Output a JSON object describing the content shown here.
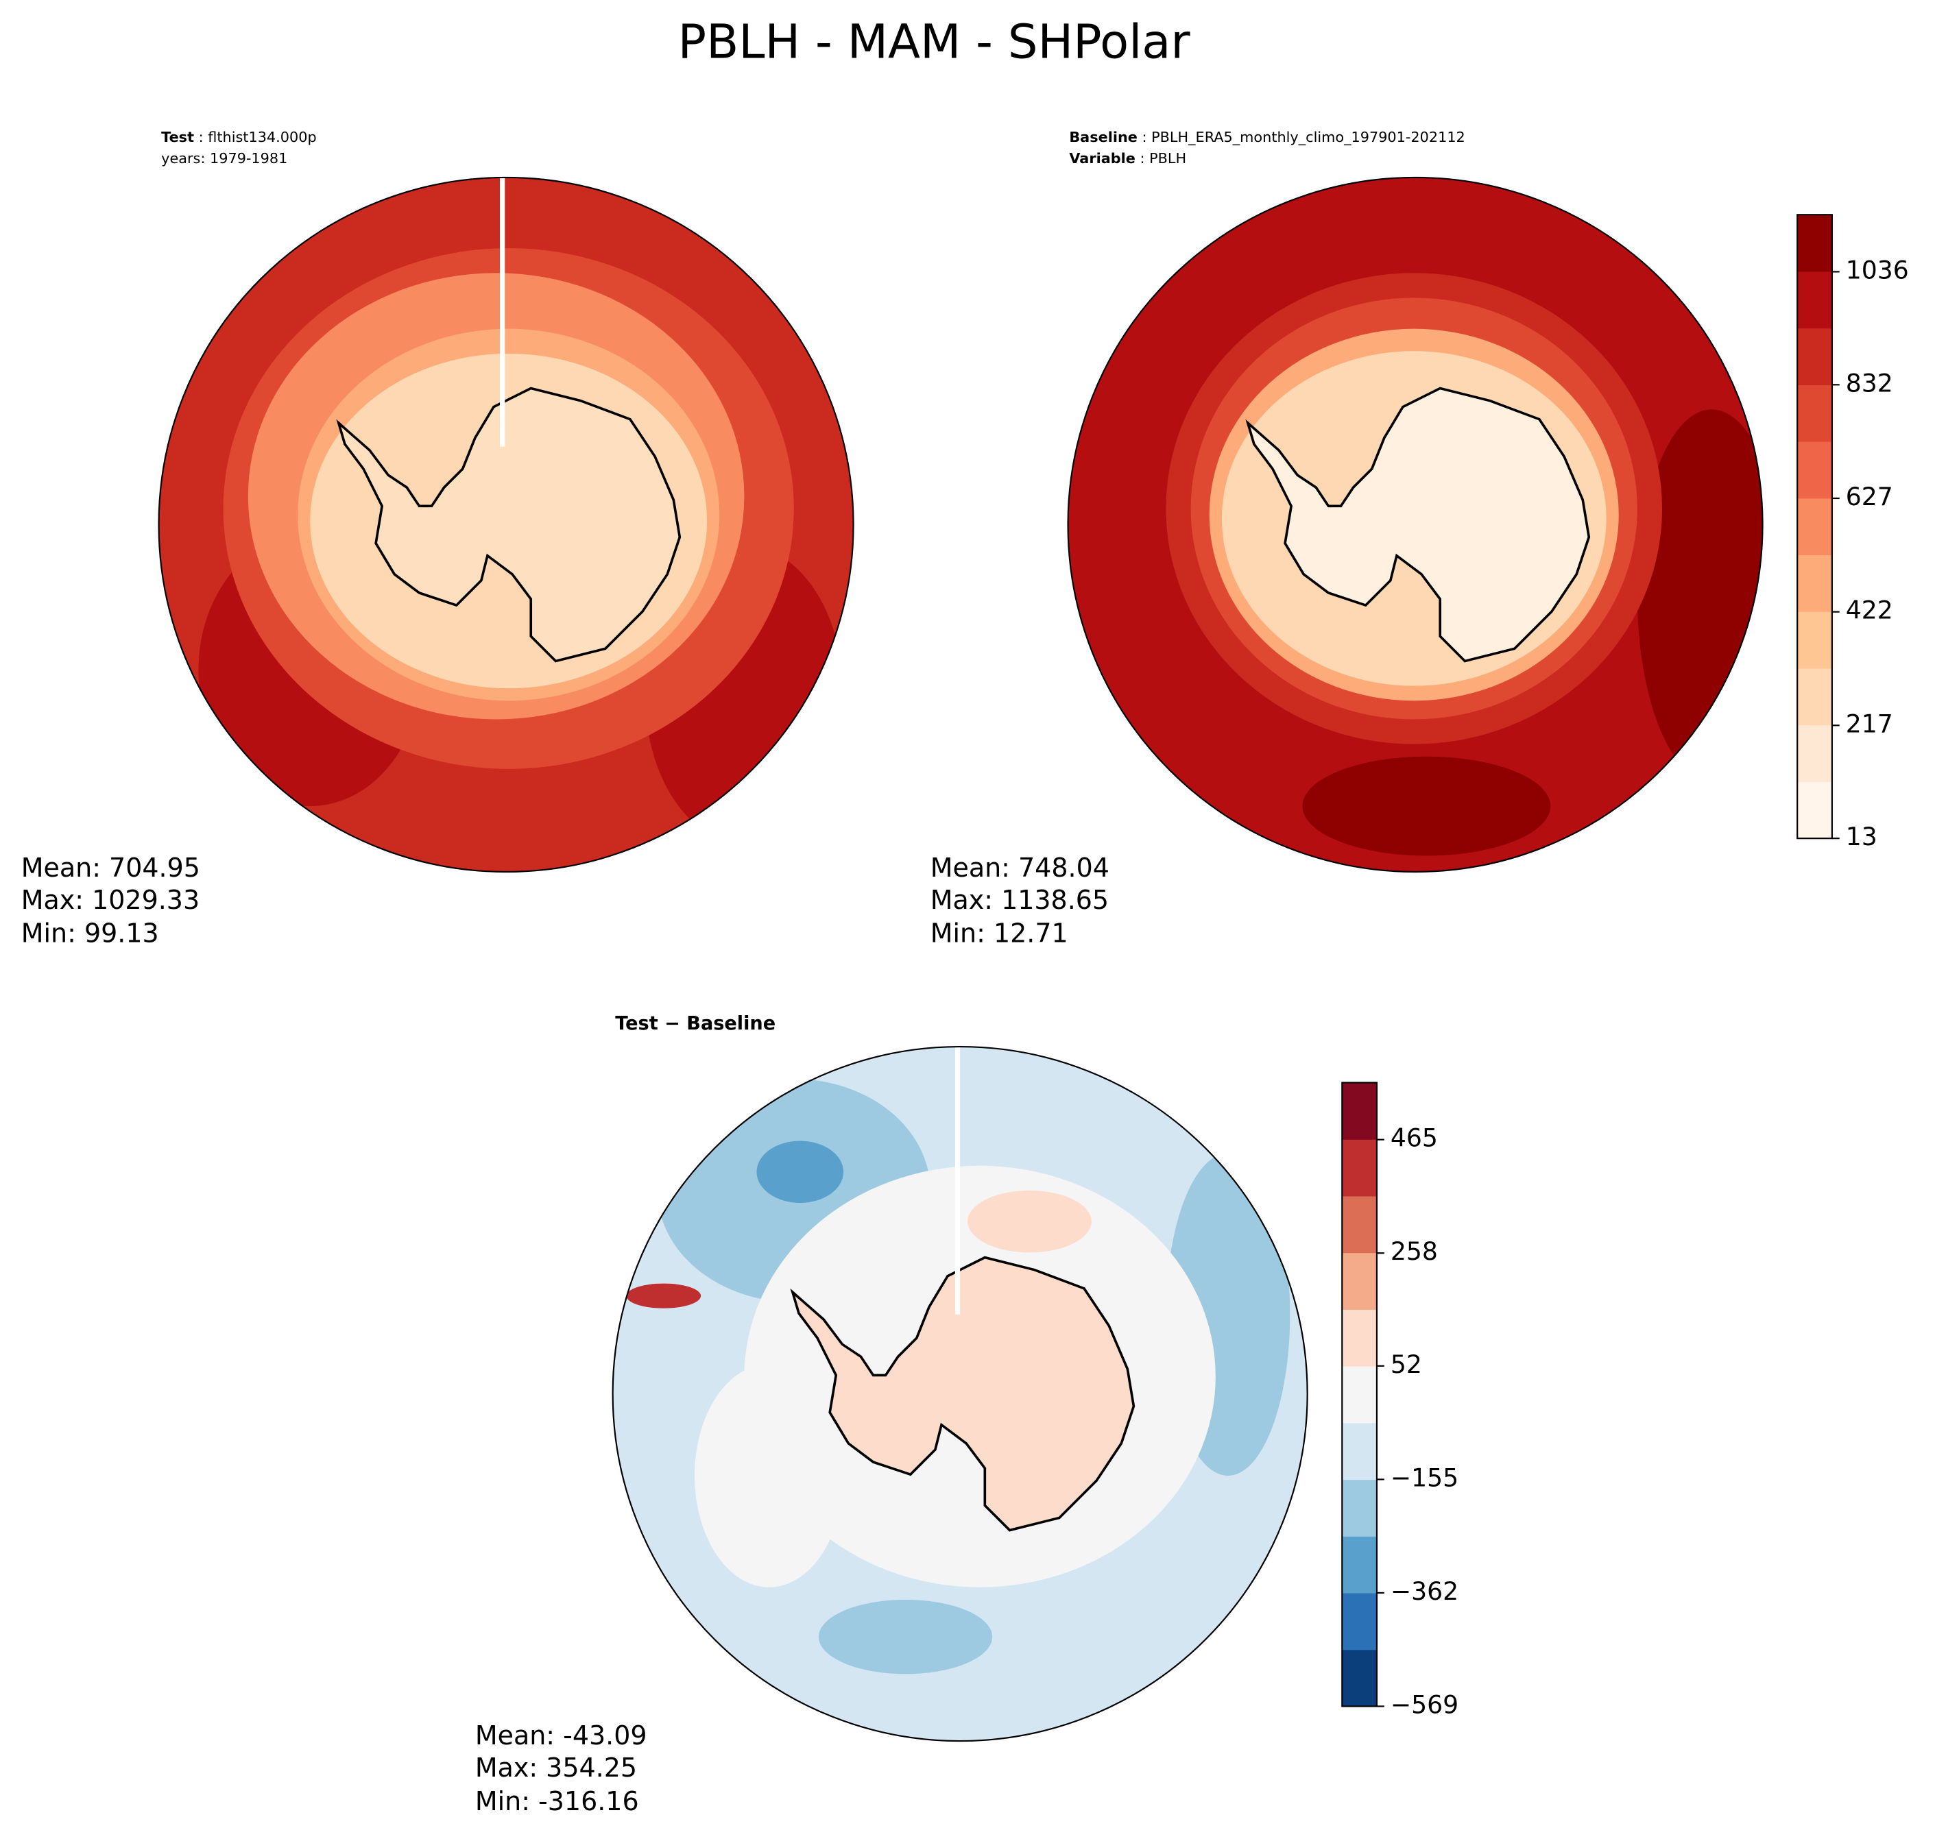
{
  "chart_data": [
    {
      "type": "map",
      "title": "PBLH - MAM - SHPolar",
      "annotation_label": "Test",
      "annotation_text": ": flthist134.000p",
      "annotation_line2": "years: 1979-1981",
      "stats": [
        "Mean: 704.95",
        "Max: 1029.33",
        "Min: 99.13"
      ]
    },
    {
      "type": "map",
      "annotation_label": "Baseline",
      "annotation_text": ": PBLH_ERA5_monthly_climo_197901-202112",
      "annotation_label2": "Variable",
      "annotation_text2": ": PBLH",
      "stats": [
        "Mean: 748.04",
        "Max: 1138.65",
        "Min: 12.71"
      ],
      "colorbar": {
        "clim": [
          13,
          1139
        ],
        "ticks": [
          13,
          217,
          422,
          627,
          832,
          1036
        ],
        "colors": [
          "#fff5eb",
          "#fee8d3",
          "#fdd8b3",
          "#fdc692",
          "#fcab79",
          "#f98b60",
          "#ef6548",
          "#df4932",
          "#cb2a1f",
          "#b50e11",
          "#8f0000"
        ]
      }
    },
    {
      "type": "map",
      "title": "Test − Baseline",
      "stats": [
        "Mean: -43.09",
        "Max: 354.25",
        "Min: -316.16"
      ],
      "colorbar": {
        "clim": [
          -569,
          569
        ],
        "ticks": [
          {
            "value": -569,
            "label": "−569"
          },
          {
            "value": -362,
            "label": "−362"
          },
          {
            "value": -155,
            "label": "−155"
          },
          52,
          258,
          465
        ],
        "colors": [
          "#0b3f7c",
          "#2a72b5",
          "#5aa0cc",
          "#9ecae1",
          "#d4e6f2",
          "#f5f5f5",
          "#fddccb",
          "#f4ab8a",
          "#dc6e56",
          "#bf2f30",
          "#82091f"
        ]
      }
    }
  ]
}
